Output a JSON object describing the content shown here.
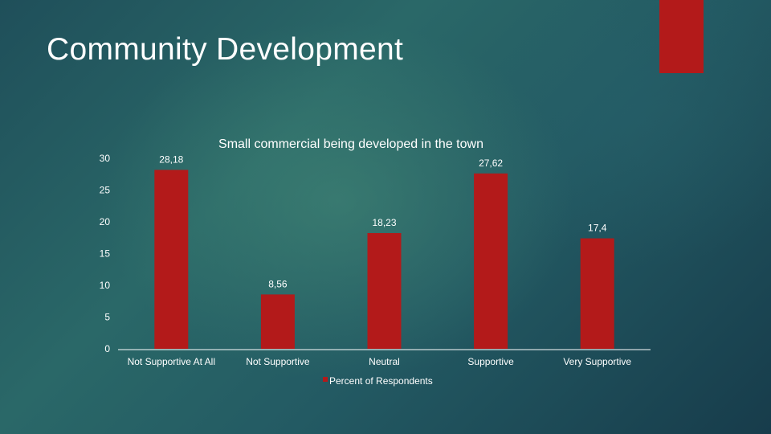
{
  "slide": {
    "title": "Community Development"
  },
  "colors": {
    "bar": "#b31a1a",
    "accent": "#b31a1a",
    "axis": "#ffffff"
  },
  "chart_data": {
    "type": "bar",
    "title": "Small commercial being developed in the town",
    "categories": [
      "Not Supportive At All",
      "Not Supportive",
      "Neutral",
      "Supportive",
      "Very Supportive"
    ],
    "series": [
      {
        "name": "Percent of Respondents",
        "values": [
          28.18,
          8.56,
          18.23,
          27.62,
          17.4
        ],
        "labels": [
          "28,18",
          "8,56",
          "18,23",
          "27,62",
          "17,4"
        ]
      }
    ],
    "ylim": [
      0,
      30
    ],
    "yticks": [
      0,
      5,
      10,
      15,
      20,
      25,
      30
    ],
    "grid": false,
    "legend": "bottom"
  }
}
